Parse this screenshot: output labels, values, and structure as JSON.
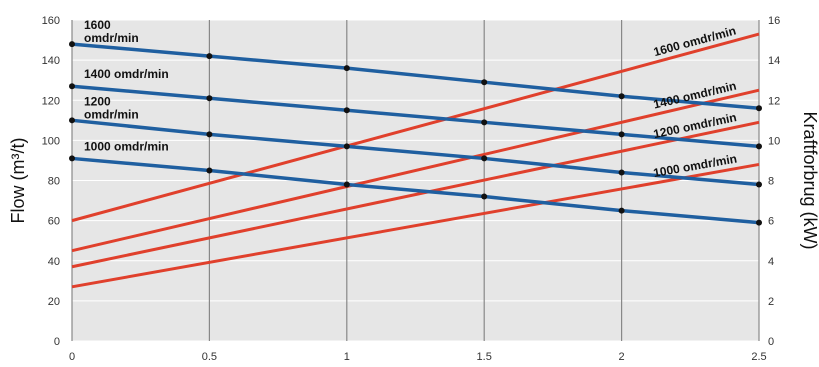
{
  "chart_data": {
    "type": "line",
    "title": "",
    "xlabel": "",
    "ylabel_left": "Flow (m³/t)",
    "ylabel_right": "Kraftforbrug (kW)",
    "xlim": [
      0,
      2.5
    ],
    "ylim_left": [
      0,
      160
    ],
    "ylim_right": [
      0,
      16
    ],
    "x_ticks": [
      "0",
      "0.5",
      "1",
      "1.5",
      "2",
      "2.5"
    ],
    "y_left_ticks": [
      "0",
      "20",
      "40",
      "60",
      "80",
      "100",
      "120",
      "140",
      "160"
    ],
    "y_right_ticks": [
      "0",
      "2",
      "4",
      "6",
      "8",
      "10",
      "12",
      "14",
      "16"
    ],
    "grid": true,
    "flow_series": [
      {
        "name_line1": "1600",
        "name_line2": "omdr/min",
        "x": [
          0,
          0.5,
          1,
          1.5,
          2,
          2.5
        ],
        "y": [
          148,
          142,
          136,
          129,
          122,
          116
        ]
      },
      {
        "name_line1": "1400 omdr/min",
        "name_line2": "",
        "x": [
          0,
          0.5,
          1,
          1.5,
          2,
          2.5
        ],
        "y": [
          127,
          121,
          115,
          109,
          103,
          97
        ]
      },
      {
        "name_line1": "1200",
        "name_line2": "omdr/min",
        "x": [
          0,
          0.5,
          1,
          1.5,
          2,
          2.5
        ],
        "y": [
          110,
          103,
          97,
          91,
          84,
          78
        ]
      },
      {
        "name_line1": "1000 omdr/min",
        "name_line2": "",
        "x": [
          0,
          0.5,
          1,
          1.5,
          2,
          2.5
        ],
        "y": [
          91,
          85,
          78,
          72,
          65,
          59
        ]
      }
    ],
    "power_series": [
      {
        "name": "1600 omdr/min",
        "x": [
          0,
          2.5
        ],
        "y": [
          6.0,
          15.3
        ]
      },
      {
        "name": "1400 omdr/min",
        "x": [
          0,
          2.5
        ],
        "y": [
          4.5,
          12.5
        ]
      },
      {
        "name": "1200 omdr/min",
        "x": [
          0,
          2.5
        ],
        "y": [
          3.7,
          10.9
        ]
      },
      {
        "name": "1000 omdr/min",
        "x": [
          0,
          2.5
        ],
        "y": [
          2.7,
          8.8
        ]
      }
    ],
    "colors": {
      "flow": "#1f5fa0",
      "power": "#e0402c",
      "plot_background": "#e6e6e6",
      "grid": "#ffffff",
      "marker": "#111111"
    }
  }
}
